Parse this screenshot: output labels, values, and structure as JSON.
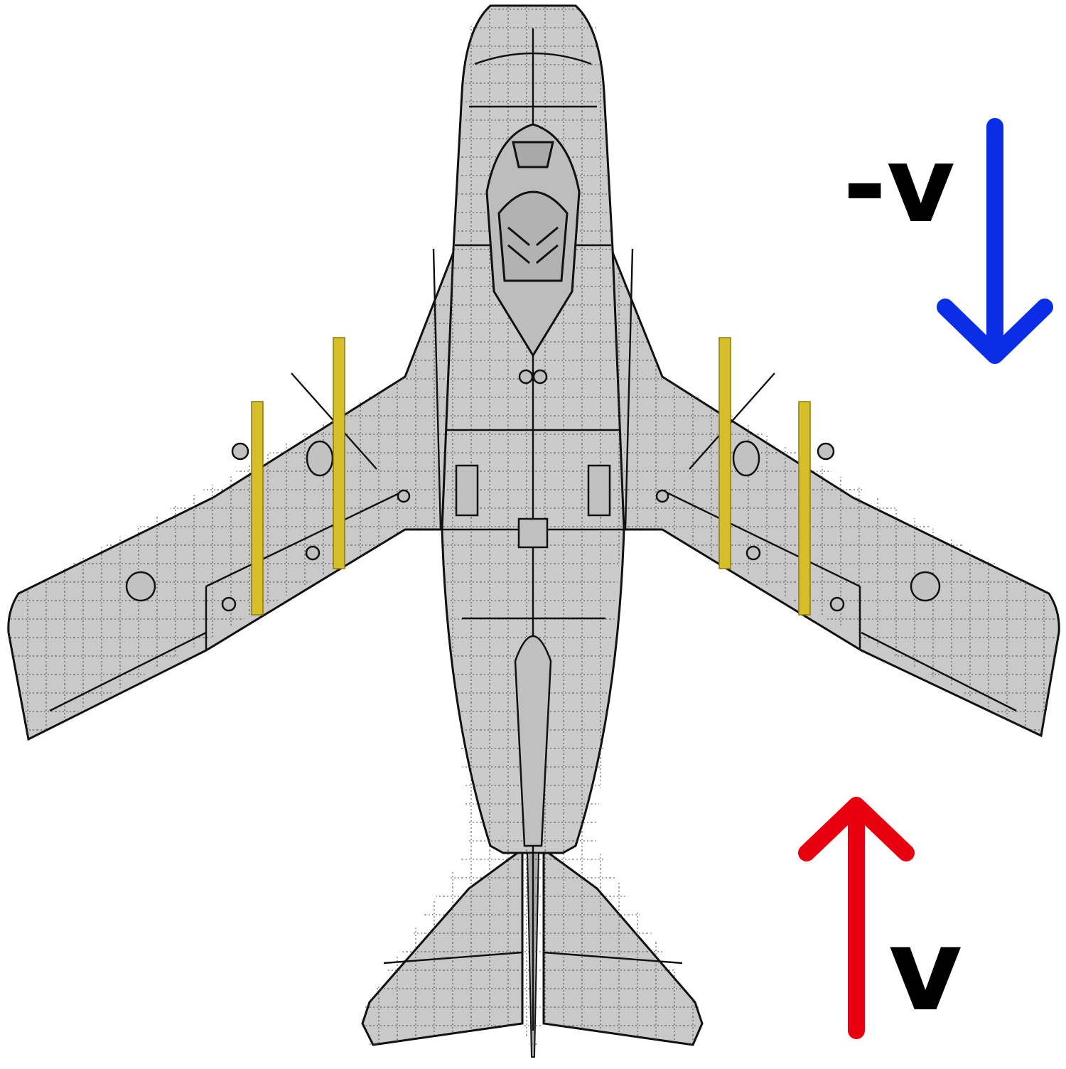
{
  "labels": {
    "negative_velocity": "-v",
    "positive_velocity": "v"
  },
  "arrows": {
    "negative_velocity": {
      "direction": "down",
      "color": "#0a2ee6"
    },
    "positive_velocity": {
      "direction": "up",
      "color": "#e8000e"
    }
  },
  "aircraft": {
    "view": "top",
    "fill_color": "#c8c8c8",
    "outline_color": "#111111",
    "stripe_color": "#d6be2a",
    "stripe_count": 4
  }
}
